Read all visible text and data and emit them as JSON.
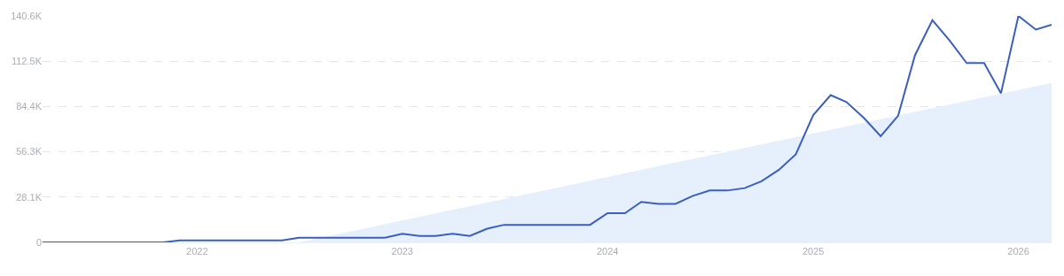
{
  "chart_data": {
    "type": "line",
    "x": [
      "2021-04",
      "2021-05",
      "2021-06",
      "2021-07",
      "2021-08",
      "2021-09",
      "2021-10",
      "2021-11",
      "2021-12",
      "2022-01",
      "2022-02",
      "2022-03",
      "2022-04",
      "2022-05",
      "2022-06",
      "2022-07",
      "2022-08",
      "2022-09",
      "2022-10",
      "2022-11",
      "2022-12",
      "2023-01",
      "2023-02",
      "2023-03",
      "2023-04",
      "2023-05",
      "2023-06",
      "2023-07",
      "2023-08",
      "2023-09",
      "2023-10",
      "2023-11",
      "2023-12",
      "2024-01",
      "2024-02",
      "2024-03",
      "2024-04",
      "2024-05",
      "2024-06",
      "2024-07",
      "2024-08",
      "2024-09",
      "2024-10",
      "2024-11",
      "2024-12",
      "2025-01",
      "2025-02",
      "2025-03",
      "2025-04",
      "2025-05",
      "2025-06",
      "2025-07",
      "2025-08",
      "2025-09",
      "2025-10",
      "2025-11",
      "2025-12",
      "2026-01",
      "2026-02",
      "2026-03"
    ],
    "series": [
      {
        "type": "area",
        "color": "#e6f0fc",
        "x": [
          "2022-07",
          "2026-03"
        ],
        "values": [
          0,
          99000
        ]
      },
      {
        "color": "#3a5fc0",
        "values": [
          0,
          0,
          0,
          0,
          0,
          0,
          0,
          0,
          1200,
          1200,
          1200,
          1200,
          1200,
          1200,
          1200,
          2900,
          2900,
          2900,
          2900,
          2900,
          2900,
          5400,
          4000,
          4000,
          5400,
          4000,
          8500,
          10900,
          10900,
          10900,
          10900,
          10900,
          10900,
          18100,
          18100,
          25100,
          23900,
          23900,
          28900,
          32200,
          32200,
          33700,
          38000,
          45100,
          54700,
          79100,
          91400,
          87200,
          77300,
          65900,
          78600,
          116200,
          137900,
          125200,
          111300,
          111300,
          92600,
          140600,
          132100,
          135200
        ]
      }
    ],
    "xlim": [
      "2021-04",
      "2026-03"
    ],
    "xticks": [
      "2022",
      "2023",
      "2024",
      "2025",
      "2026"
    ],
    "ylim": [
      0,
      140600
    ],
    "yticks": [
      0,
      {
        "value": 28100,
        "label": "28.1K"
      },
      {
        "value": 56300,
        "label": "56.3K"
      },
      {
        "value": 84400,
        "label": "84.4K"
      },
      {
        "value": 112500,
        "label": "112.5K"
      },
      {
        "value": 140600,
        "label": "140.6K"
      }
    ],
    "grid": "y",
    "line_style": "solid",
    "marker": "none"
  }
}
